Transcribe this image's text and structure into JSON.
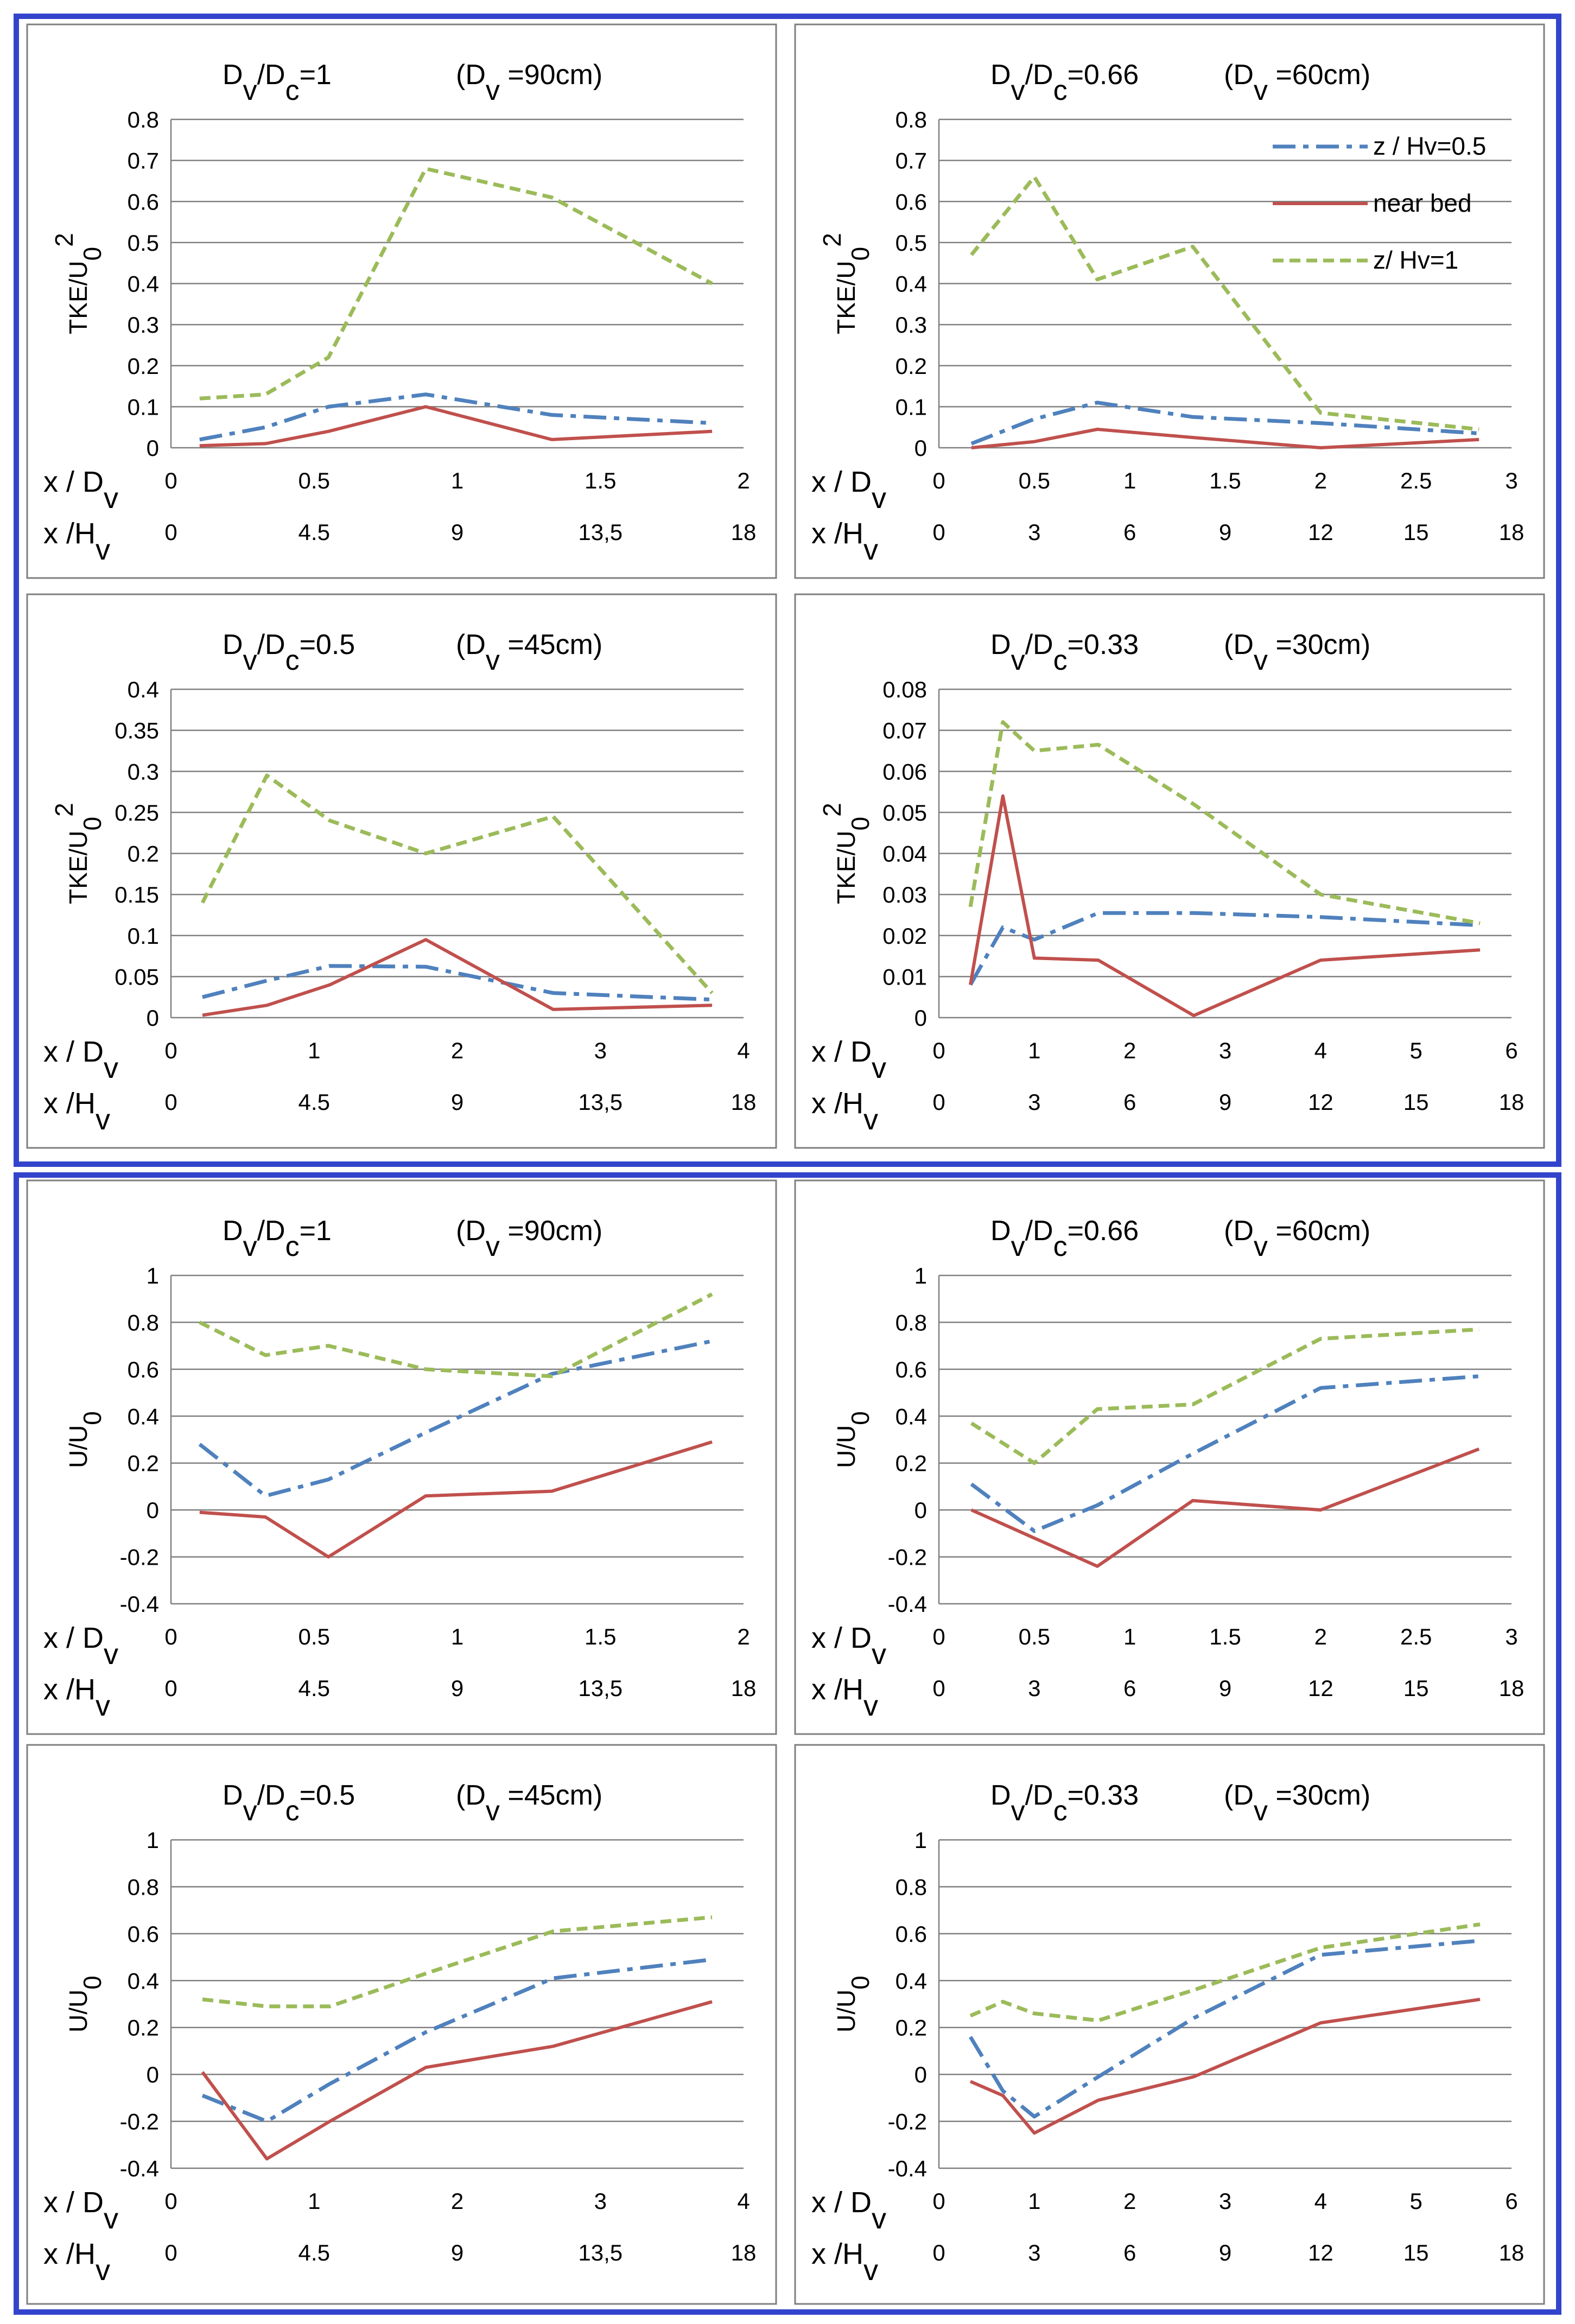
{
  "legend": [
    {
      "label": "z / Hv=0.5",
      "series": "z05"
    },
    {
      "label": "near bed",
      "series": "bed"
    },
    {
      "label": "z/ Hv=1",
      "series": "z1"
    }
  ],
  "styles": {
    "z05": {
      "color": "#4f81bd",
      "dash": "42 14 10 14",
      "width": 7
    },
    "bed": {
      "color": "#c0504d",
      "dash": "",
      "width": 6
    },
    "z1": {
      "color": "#9bbb59",
      "dash": "20 11",
      "width": 7
    },
    "frame_blue": "#3344cc",
    "grid": "#808080",
    "panel_border": "#7f7f7f"
  },
  "chart_data": [
    {
      "type": "line",
      "title_ratio": "1",
      "title_dv": "90cm",
      "ylabel": "TKE/U0^2",
      "ylim": [
        0,
        0.8
      ],
      "yticks": [
        "0",
        "0.1",
        "0.2",
        "0.3",
        "0.4",
        "0.5",
        "0.6",
        "0.7",
        "0.8"
      ],
      "xlim": [
        0,
        2
      ],
      "xticks_dv": [
        "0",
        "0.5",
        "1",
        "1.5",
        "2"
      ],
      "xticks_hv": [
        "0",
        "4.5",
        "9",
        "13,5",
        "18"
      ],
      "xlabel_top": "x / Dv",
      "xlabel_bottom": "x /Hv",
      "series": [
        {
          "key": "z05",
          "x": [
            0.1,
            0.33,
            0.55,
            0.89,
            1.33,
            1.89
          ],
          "y": [
            0.02,
            0.05,
            0.1,
            0.13,
            0.08,
            0.06
          ]
        },
        {
          "key": "bed",
          "x": [
            0.1,
            0.33,
            0.55,
            0.89,
            1.33,
            1.89
          ],
          "y": [
            0.005,
            0.01,
            0.04,
            0.1,
            0.02,
            0.04
          ]
        },
        {
          "key": "z1",
          "x": [
            0.1,
            0.33,
            0.55,
            0.89,
            1.33,
            1.89
          ],
          "y": [
            0.12,
            0.13,
            0.22,
            0.68,
            0.61,
            0.4
          ]
        }
      ]
    },
    {
      "type": "line",
      "title_ratio": "0.66",
      "title_dv": "60cm",
      "ylabel": "TKE/U0^2",
      "ylim": [
        0,
        0.8
      ],
      "yticks": [
        "0",
        "0.1",
        "0.2",
        "0.3",
        "0.4",
        "0.5",
        "0.6",
        "0.7",
        "0.8"
      ],
      "xlim": [
        0,
        3
      ],
      "xticks_dv": [
        "0",
        "0.5",
        "1",
        "1.5",
        "2",
        "2.5",
        "3"
      ],
      "xticks_hv": [
        "0",
        "3",
        "6",
        "9",
        "12",
        "15",
        "18"
      ],
      "xlabel_top": "x / Dv",
      "xlabel_bottom": "x /Hv",
      "legend": true,
      "series": [
        {
          "key": "z05",
          "x": [
            0.17,
            0.5,
            0.83,
            1.33,
            2,
            2.83
          ],
          "y": [
            0.01,
            0.07,
            0.11,
            0.075,
            0.06,
            0.035
          ]
        },
        {
          "key": "bed",
          "x": [
            0.17,
            0.5,
            0.83,
            1.33,
            2,
            2.83
          ],
          "y": [
            0,
            0.015,
            0.045,
            0.025,
            0,
            0.02
          ]
        },
        {
          "key": "z1",
          "x": [
            0.17,
            0.5,
            0.83,
            1.33,
            2,
            2.83
          ],
          "y": [
            0.47,
            0.66,
            0.41,
            0.49,
            0.085,
            0.045
          ]
        }
      ]
    },
    {
      "type": "line",
      "title_ratio": "0.5",
      "title_dv": "45cm",
      "ylabel": "TKE/U0^2",
      "ylim": [
        0,
        0.4
      ],
      "yticks": [
        "0",
        "0.05",
        "0.1",
        "0.15",
        "0.2",
        "0.25",
        "0.3",
        "0.35",
        "0.4"
      ],
      "xlim": [
        0,
        4
      ],
      "xticks_dv": [
        "0",
        "1",
        "2",
        "3",
        "4"
      ],
      "xticks_hv": [
        "0",
        "4.5",
        "9",
        "13,5",
        "18"
      ],
      "xlabel_top": "x / Dv",
      "xlabel_bottom": "x /Hv",
      "series": [
        {
          "key": "z05",
          "x": [
            0.22,
            0.67,
            1.11,
            1.78,
            2.67,
            3.78
          ],
          "y": [
            0.025,
            0.045,
            0.063,
            0.062,
            0.03,
            0.022
          ]
        },
        {
          "key": "bed",
          "x": [
            0.22,
            0.67,
            1.11,
            1.78,
            2.67,
            3.78
          ],
          "y": [
            0.003,
            0.015,
            0.04,
            0.095,
            0.01,
            0.015
          ]
        },
        {
          "key": "z1",
          "x": [
            0.22,
            0.67,
            1.11,
            1.78,
            2.67,
            3.78
          ],
          "y": [
            0.14,
            0.295,
            0.24,
            0.2,
            0.245,
            0.03
          ]
        }
      ]
    },
    {
      "type": "line",
      "title_ratio": "0.33",
      "title_dv": "30cm",
      "ylabel": "TKE/U0^2",
      "ylim": [
        0,
        0.08
      ],
      "yticks": [
        "0",
        "0.01",
        "0.02",
        "0.03",
        "0.04",
        "0.05",
        "0.06",
        "0.07",
        "0.08"
      ],
      "xlim": [
        0,
        6
      ],
      "xticks_dv": [
        "0",
        "1",
        "2",
        "3",
        "4",
        "5",
        "6"
      ],
      "xticks_hv": [
        "0",
        "3",
        "6",
        "9",
        "12",
        "15",
        "18"
      ],
      "xlabel_top": "x / Dv",
      "xlabel_bottom": "x /Hv",
      "series": [
        {
          "key": "z05",
          "x": [
            0.33,
            0.67,
            1,
            1.67,
            2.67,
            4,
            5.67
          ],
          "y": [
            0.008,
            0.022,
            0.019,
            0.0255,
            0.0255,
            0.0245,
            0.0225
          ]
        },
        {
          "key": "bed",
          "x": [
            0.33,
            0.67,
            1,
            1.67,
            2.67,
            4,
            5.67
          ],
          "y": [
            0.008,
            0.054,
            0.0145,
            0.014,
            0.0005,
            0.014,
            0.0165
          ]
        },
        {
          "key": "z1",
          "x": [
            0.33,
            0.67,
            1,
            1.67,
            2.67,
            4,
            5.67
          ],
          "y": [
            0.027,
            0.072,
            0.065,
            0.0665,
            0.052,
            0.03,
            0.023
          ]
        }
      ]
    },
    {
      "type": "line",
      "title_ratio": "1",
      "title_dv": "90cm",
      "ylabel": "U/U0",
      "ylim": [
        -0.4,
        1
      ],
      "yticks": [
        "-0.4",
        "-0.2",
        "0",
        "0.2",
        "0.4",
        "0.6",
        "0.8",
        "1"
      ],
      "xlim": [
        0,
        2
      ],
      "xticks_dv": [
        "0",
        "0.5",
        "1",
        "1.5",
        "2"
      ],
      "xticks_hv": [
        "0",
        "4.5",
        "9",
        "13,5",
        "18"
      ],
      "xlabel_top": "x / Dv",
      "xlabel_bottom": "x /Hv",
      "series": [
        {
          "key": "z05",
          "x": [
            0.1,
            0.33,
            0.55,
            0.89,
            1.33,
            1.89
          ],
          "y": [
            0.28,
            0.06,
            0.13,
            0.33,
            0.58,
            0.72
          ]
        },
        {
          "key": "bed",
          "x": [
            0.1,
            0.33,
            0.55,
            0.89,
            1.33,
            1.89
          ],
          "y": [
            -0.01,
            -0.03,
            -0.2,
            0.06,
            0.08,
            0.29
          ]
        },
        {
          "key": "z1",
          "x": [
            0.1,
            0.33,
            0.55,
            0.89,
            1.33,
            1.89
          ],
          "y": [
            0.8,
            0.66,
            0.7,
            0.6,
            0.57,
            0.92
          ]
        }
      ]
    },
    {
      "type": "line",
      "title_ratio": "0.66",
      "title_dv": "60cm",
      "ylabel": "U/U0",
      "ylim": [
        -0.4,
        1
      ],
      "yticks": [
        "-0.4",
        "-0.2",
        "0",
        "0.2",
        "0.4",
        "0.6",
        "0.8",
        "1"
      ],
      "xlim": [
        0,
        3
      ],
      "xticks_dv": [
        "0",
        "0.5",
        "1",
        "1.5",
        "2",
        "2.5",
        "3"
      ],
      "xticks_hv": [
        "0",
        "3",
        "6",
        "9",
        "12",
        "15",
        "18"
      ],
      "xlabel_top": "x / Dv",
      "xlabel_bottom": "x /Hv",
      "series": [
        {
          "key": "z05",
          "x": [
            0.17,
            0.5,
            0.83,
            1.33,
            2,
            2.83
          ],
          "y": [
            0.11,
            -0.09,
            0.02,
            0.24,
            0.52,
            0.57
          ]
        },
        {
          "key": "bed",
          "x": [
            0.17,
            0.5,
            0.83,
            1.33,
            2,
            2.83
          ],
          "y": [
            0,
            -0.12,
            -0.24,
            0.04,
            0,
            0.26
          ]
        },
        {
          "key": "z1",
          "x": [
            0.17,
            0.5,
            0.83,
            1.33,
            2,
            2.83
          ],
          "y": [
            0.37,
            0.2,
            0.43,
            0.45,
            0.73,
            0.77
          ]
        }
      ]
    },
    {
      "type": "line",
      "title_ratio": "0.5",
      "title_dv": "45cm",
      "ylabel": "U/U0",
      "ylim": [
        -0.4,
        1
      ],
      "yticks": [
        "-0.4",
        "-0.2",
        "0",
        "0.2",
        "0.4",
        "0.6",
        "0.8",
        "1"
      ],
      "xlim": [
        0,
        4
      ],
      "xticks_dv": [
        "0",
        "1",
        "2",
        "3",
        "4"
      ],
      "xticks_hv": [
        "0",
        "4.5",
        "9",
        "13,5",
        "18"
      ],
      "xlabel_top": "x / Dv",
      "xlabel_bottom": "x /Hv",
      "series": [
        {
          "key": "z05",
          "x": [
            0.22,
            0.67,
            1.11,
            1.78,
            2.67,
            3.78
          ],
          "y": [
            -0.09,
            -0.2,
            -0.04,
            0.18,
            0.41,
            0.49
          ]
        },
        {
          "key": "bed",
          "x": [
            0.22,
            0.67,
            1.11,
            1.78,
            2.67,
            3.78
          ],
          "y": [
            0.01,
            -0.36,
            -0.2,
            0.03,
            0.12,
            0.31
          ]
        },
        {
          "key": "z1",
          "x": [
            0.22,
            0.67,
            1.11,
            1.78,
            2.67,
            3.78
          ],
          "y": [
            0.32,
            0.29,
            0.29,
            0.43,
            0.61,
            0.67
          ]
        }
      ]
    },
    {
      "type": "line",
      "title_ratio": "0.33",
      "title_dv": "30cm",
      "ylabel": "U/U0",
      "ylim": [
        -0.4,
        1
      ],
      "yticks": [
        "-0.4",
        "-0.2",
        "0",
        "0.2",
        "0.4",
        "0.6",
        "0.8",
        "1"
      ],
      "xlim": [
        0,
        6
      ],
      "xticks_dv": [
        "0",
        "1",
        "2",
        "3",
        "4",
        "5",
        "6"
      ],
      "xticks_hv": [
        "0",
        "3",
        "6",
        "9",
        "12",
        "15",
        "18"
      ],
      "xlabel_top": "x / Dv",
      "xlabel_bottom": "x /Hv",
      "series": [
        {
          "key": "z05",
          "x": [
            0.33,
            0.67,
            1,
            1.67,
            2.67,
            4,
            5.67
          ],
          "y": [
            0.16,
            -0.07,
            -0.18,
            -0.01,
            0.24,
            0.51,
            0.57
          ]
        },
        {
          "key": "bed",
          "x": [
            0.33,
            0.67,
            1,
            1.67,
            2.67,
            4,
            5.67
          ],
          "y": [
            -0.03,
            -0.09,
            -0.25,
            -0.11,
            -0.01,
            0.22,
            0.32
          ]
        },
        {
          "key": "z1",
          "x": [
            0.33,
            0.67,
            1,
            1.67,
            2.67,
            4,
            5.67
          ],
          "y": [
            0.25,
            0.31,
            0.26,
            0.23,
            0.36,
            0.54,
            0.64
          ]
        }
      ]
    }
  ]
}
